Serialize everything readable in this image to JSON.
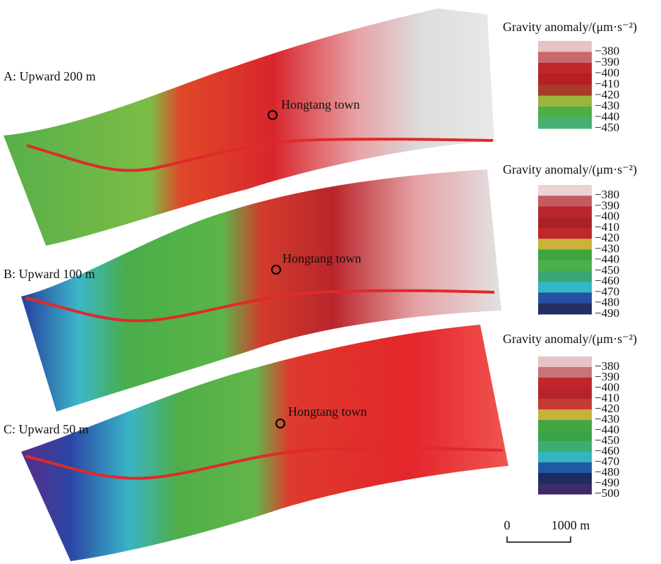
{
  "panels": [
    {
      "label": "A: Upward 200 m",
      "town": "Hongtang town"
    },
    {
      "label": "B: Upward 100 m",
      "town": "Hongtang town"
    },
    {
      "label": "C: Upward 50 m",
      "town": "Hongtang town"
    }
  ],
  "legends": [
    {
      "title": "Gravity anomaly/(μm·s⁻²)",
      "labels": [
        "−380",
        "−390",
        "−400",
        "−410",
        "−420",
        "−430",
        "−440",
        "−450"
      ],
      "colors": [
        "#e6c3c5",
        "#c9686d",
        "#c0272d",
        "#b51f24",
        "#a83a2a",
        "#9cb43e",
        "#4fae46",
        "#47b072"
      ]
    },
    {
      "title": "Gravity anomaly/(μm·s⁻²)",
      "labels": [
        "−380",
        "−390",
        "−400",
        "−410",
        "−420",
        "−430",
        "−440",
        "−450",
        "−460",
        "−470",
        "−480",
        "−490"
      ],
      "colors": [
        "#ecd2d3",
        "#c45b61",
        "#b9262c",
        "#a82328",
        "#c0272d",
        "#c9b43a",
        "#3fa53f",
        "#4bb04c",
        "#3aa574",
        "#34b6c6",
        "#2551a0",
        "#232e62"
      ]
    },
    {
      "title": "Gravity anomaly/(μm·s⁻²)",
      "labels": [
        "−380",
        "−390",
        "−400",
        "−410",
        "−420",
        "−430",
        "−440",
        "−450",
        "−460",
        "−470",
        "−480",
        "−490",
        "−500"
      ],
      "colors": [
        "#e7c3c5",
        "#c8737a",
        "#c0262c",
        "#b5242a",
        "#c53a32",
        "#c6b13b",
        "#44a642",
        "#39a34a",
        "#3cae72",
        "#33b5c0",
        "#1f5aa4",
        "#202a62",
        "#3e2a6a"
      ]
    }
  ],
  "scale_bar": {
    "start": "0",
    "end": "1000 m"
  }
}
